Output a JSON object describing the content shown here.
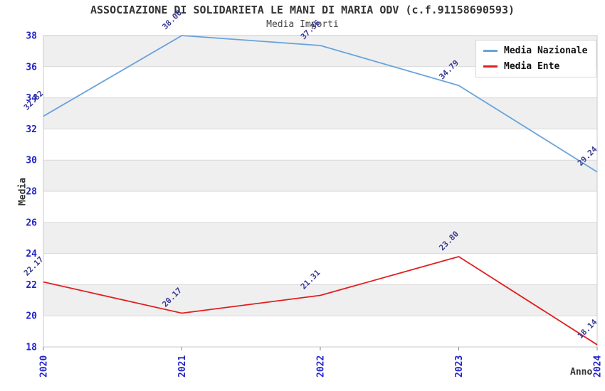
{
  "header": {
    "title": "ASSOCIAZIONE DI SOLIDARIETA LE MANI DI MARIA ODV (c.f.91158690593)",
    "subtitle": "Media Importi"
  },
  "axes": {
    "ylabel": "Media",
    "xlabel": "Anno"
  },
  "colors": {
    "tick_label": "#2222cc",
    "data_label": "#3a3a94",
    "band_fill": "#efefef",
    "gridline": "#d9d9d9",
    "plot_border": "#c9c9c9",
    "tick_mark": "#888888",
    "nazionale_line": "#69a3dc",
    "ente_line": "#e01f1f"
  },
  "chart_data": {
    "type": "line",
    "title": "ASSOCIAZIONE DI SOLIDARIETA LE MANI DI MARIA ODV (c.f.91158690593)",
    "subtitle": "Media Importi",
    "xlabel": "Anno",
    "ylabel": "Media",
    "x": [
      "2020",
      "2021",
      "2022",
      "2023",
      "2024"
    ],
    "series": [
      {
        "name": "Media Nazionale",
        "color": "#69a3dc",
        "values": [
          32.82,
          38.0,
          37.36,
          34.79,
          29.24
        ],
        "labels": [
          "32.82",
          "38.00",
          "37.36",
          "34.79",
          "29.24"
        ]
      },
      {
        "name": "Media Ente",
        "color": "#e01f1f",
        "values": [
          22.17,
          20.17,
          21.31,
          23.8,
          18.14
        ],
        "labels": [
          "22.17",
          "20.17",
          "21.31",
          "23.80",
          "18.14"
        ]
      }
    ],
    "ylim": [
      18,
      38
    ],
    "yticks": [
      18,
      20,
      22,
      24,
      26,
      28,
      30,
      32,
      34,
      36,
      38
    ],
    "grid": "horizontal gridlines with alternating shaded bands every 2 units",
    "legend_position": "top-right"
  }
}
